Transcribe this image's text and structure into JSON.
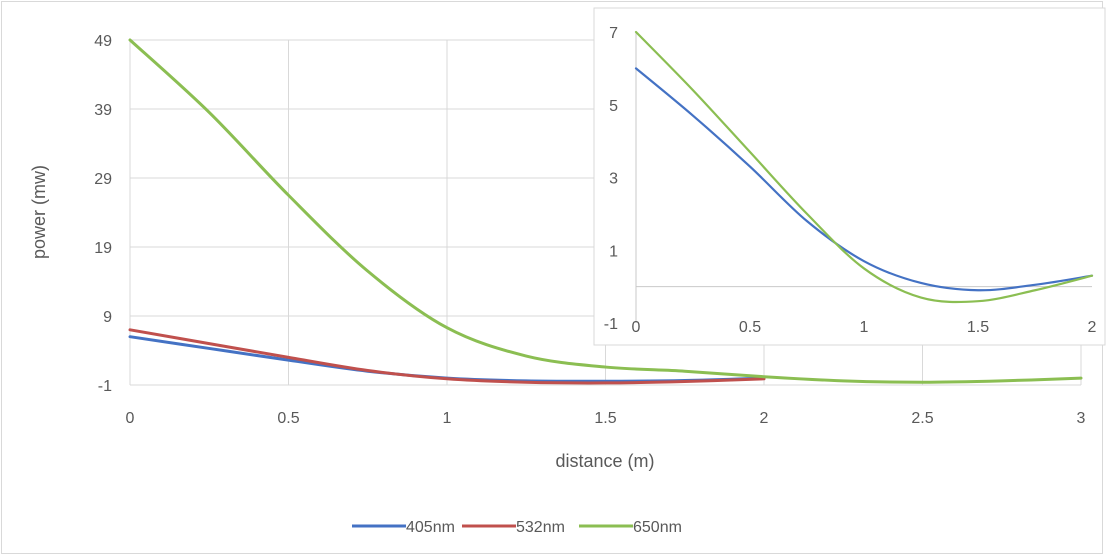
{
  "chart_data": [
    {
      "type": "line",
      "title": "",
      "xlabel": "distance (m)",
      "ylabel": "power (mw)",
      "xlim": [
        0,
        3
      ],
      "ylim": [
        -1,
        50
      ],
      "x_ticks": [
        "0",
        "0.5",
        "1",
        "1.5",
        "2",
        "2.5",
        "3"
      ],
      "y_ticks": [
        "-1",
        "9",
        "19",
        "29",
        "39",
        "49"
      ],
      "grid": true,
      "legend": "bottom",
      "series": [
        {
          "name": "405nm",
          "color": "#4472c4",
          "points": [
            [
              0,
              6.0
            ],
            [
              0.25,
              4.3
            ],
            [
              0.5,
              2.6
            ],
            [
              0.75,
              1.0
            ],
            [
              1.0,
              0.0
            ],
            [
              1.25,
              -0.4
            ],
            [
              1.5,
              -0.45
            ],
            [
              1.75,
              -0.35
            ],
            [
              2.0,
              0.0
            ]
          ]
        },
        {
          "name": "532nm",
          "color": "#c0504d",
          "points": [
            [
              0,
              7.0
            ],
            [
              0.25,
              5.0
            ],
            [
              0.5,
              3.0
            ],
            [
              0.75,
              1.1
            ],
            [
              1.0,
              -0.1
            ],
            [
              1.25,
              -0.6
            ],
            [
              1.5,
              -0.7
            ],
            [
              1.75,
              -0.5
            ],
            [
              2.0,
              -0.1
            ]
          ]
        },
        {
          "name": "650nm",
          "color": "#8bbe52",
          "points": [
            [
              0,
              49
            ],
            [
              0.25,
              38.5
            ],
            [
              0.5,
              26.5
            ],
            [
              0.75,
              15.5
            ],
            [
              1.0,
              7.3
            ],
            [
              1.25,
              3.2
            ],
            [
              1.5,
              1.6
            ],
            [
              1.75,
              1.0
            ],
            [
              2.0,
              0.2
            ],
            [
              2.25,
              -0.4
            ],
            [
              2.5,
              -0.6
            ],
            [
              2.75,
              -0.4
            ],
            [
              3.0,
              0.0
            ]
          ]
        }
      ]
    },
    {
      "type": "line",
      "title": "",
      "xlabel": "",
      "ylabel": "",
      "xlim": [
        0,
        2
      ],
      "ylim": [
        -1,
        7
      ],
      "x_ticks": [
        "0",
        "0.5",
        "1",
        "1.5",
        "2"
      ],
      "y_ticks": [
        "-1",
        "1",
        "3",
        "5",
        "7"
      ],
      "grid": false,
      "series": [
        {
          "color": "#4472c4",
          "points": [
            [
              0,
              6.0
            ],
            [
              0.25,
              4.7
            ],
            [
              0.5,
              3.3
            ],
            [
              0.75,
              1.8
            ],
            [
              1.0,
              0.7
            ],
            [
              1.25,
              0.1
            ],
            [
              1.5,
              -0.1
            ],
            [
              1.75,
              0.05
            ],
            [
              2.0,
              0.3
            ]
          ]
        },
        {
          "color": "#8bbe52",
          "points": [
            [
              0,
              7.0
            ],
            [
              0.25,
              5.4
            ],
            [
              0.5,
              3.7
            ],
            [
              0.75,
              2.0
            ],
            [
              1.0,
              0.5
            ],
            [
              1.25,
              -0.3
            ],
            [
              1.5,
              -0.4
            ],
            [
              1.75,
              -0.1
            ],
            [
              2.0,
              0.3
            ]
          ]
        }
      ]
    }
  ]
}
